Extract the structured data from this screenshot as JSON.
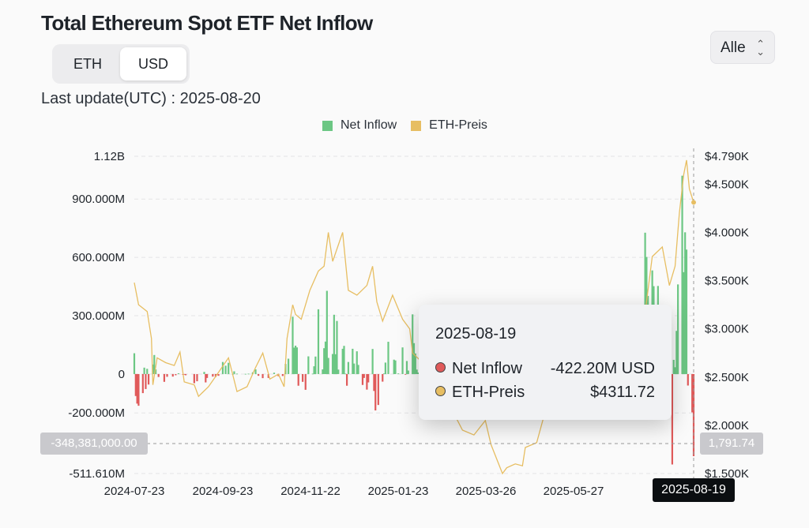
{
  "header": {
    "title": "Total Ethereum Spot ETF Net Inflow",
    "last_update": "Last update(UTC) : 2025-08-20",
    "unit_toggle": [
      "ETH",
      "USD"
    ],
    "unit_selected": "USD",
    "range_select": "Alle",
    "range_chevron": "⌃⌄"
  },
  "legend": [
    {
      "label": "Net Inflow",
      "color": "#6cc784"
    },
    {
      "label": "ETH-Preis",
      "color": "#e7be62"
    }
  ],
  "tooltip": {
    "date": "2025-08-19",
    "rows": [
      {
        "label": "Net Inflow",
        "value": "-422.20M USD",
        "dot": "#e05a5a"
      },
      {
        "label": "ETH-Preis",
        "value": "$4311.72",
        "dot": "#e7be62"
      }
    ]
  },
  "crosshair": {
    "left_value": "-348,381,000.00",
    "right_value": "1,791.74",
    "x_label": "2025-08-19"
  },
  "chart_data": {
    "type": "bar",
    "x_start": "2024-07-23",
    "x_end": "2025-08-19",
    "x_tick_labels": [
      "2024-07-23",
      "2024-09-23",
      "2024-11-22",
      "2025-01-23",
      "2025-03-26",
      "2025-05-27",
      "2025-08-19"
    ],
    "y_left_tick_labels": [
      "1.12B",
      "900.000M",
      "600.000M",
      "300.000M",
      "0",
      "-200.000M",
      "-511.610M"
    ],
    "y_right_tick_labels": [
      "$4.790K",
      "$4.500K",
      "$4.000K",
      "$3.500K",
      "$3.000K",
      "$2.500K",
      "$2.000K",
      "$1.500K"
    ],
    "ylim_left": [
      -511610000,
      1120000000
    ],
    "ylim_right": [
      1500,
      4790
    ],
    "grid": true,
    "legend_position": "top-center",
    "colors": {
      "inflow_positive": "#6cc784",
      "inflow_negative": "#e05a5a",
      "price": "#e7be62"
    },
    "series": [
      {
        "name": "Net Inflow",
        "type": "bar",
        "unit": "USD",
        "points": [
          [
            "2024-07-23",
            107
          ],
          [
            "2024-07-24",
            -113
          ],
          [
            "2024-07-25",
            -152
          ],
          [
            "2024-07-26",
            -163
          ],
          [
            "2024-07-29",
            -98
          ],
          [
            "2024-07-30",
            33
          ],
          [
            "2024-07-31",
            -77
          ],
          [
            "2024-08-01",
            27
          ],
          [
            "2024-08-02",
            -54
          ],
          [
            "2024-08-05",
            49
          ],
          [
            "2024-08-06",
            98
          ],
          [
            "2024-08-07",
            24
          ],
          [
            "2024-08-09",
            -15
          ],
          [
            "2024-08-13",
            -40
          ],
          [
            "2024-08-15",
            -14
          ],
          [
            "2024-08-19",
            -13
          ],
          [
            "2024-08-21",
            -6
          ],
          [
            "2024-08-23",
            4
          ],
          [
            "2024-08-26",
            -3
          ],
          [
            "2024-08-27",
            -3
          ],
          [
            "2024-08-28",
            -6
          ],
          [
            "2024-09-03",
            -47
          ],
          [
            "2024-09-05",
            -37
          ],
          [
            "2024-09-10",
            11
          ],
          [
            "2024-09-11",
            -43
          ],
          [
            "2024-09-12",
            -20
          ],
          [
            "2024-09-16",
            -13
          ],
          [
            "2024-09-18",
            -15
          ],
          [
            "2024-09-20",
            -9
          ],
          [
            "2024-09-23",
            62
          ],
          [
            "2024-09-25",
            43
          ],
          [
            "2024-09-27",
            58
          ],
          [
            "2024-09-30",
            0
          ],
          [
            "2024-10-01",
            14
          ],
          [
            "2024-10-03",
            2
          ],
          [
            "2024-10-09",
            1
          ],
          [
            "2024-10-11",
            2
          ],
          [
            "2024-10-14",
            9
          ],
          [
            "2024-10-16",
            24
          ],
          [
            "2024-10-18",
            -9
          ],
          [
            "2024-10-21",
            -21
          ],
          [
            "2024-10-25",
            -20
          ],
          [
            "2024-10-29",
            7
          ],
          [
            "2024-11-01",
            -11
          ],
          [
            "2024-11-04",
            -10
          ],
          [
            "2024-11-06",
            52
          ],
          [
            "2024-11-08",
            79
          ],
          [
            "2024-11-11",
            295
          ],
          [
            "2024-11-12",
            136
          ],
          [
            "2024-11-13",
            146
          ],
          [
            "2024-11-14",
            137
          ],
          [
            "2024-11-15",
            -60
          ],
          [
            "2024-11-18",
            -40
          ],
          [
            "2024-11-20",
            -81
          ],
          [
            "2024-11-22",
            91
          ],
          [
            "2024-11-25",
            2
          ],
          [
            "2024-11-26",
            40
          ],
          [
            "2024-11-27",
            90
          ],
          [
            "2024-11-29",
            333
          ],
          [
            "2024-12-02",
            24
          ],
          [
            "2024-12-03",
            133
          ],
          [
            "2024-12-04",
            167
          ],
          [
            "2024-12-05",
            428
          ],
          [
            "2024-12-06",
            83
          ],
          [
            "2024-12-09",
            103
          ],
          [
            "2024-12-10",
            305
          ],
          [
            "2024-12-11",
            102
          ],
          [
            "2024-12-12",
            273
          ],
          [
            "2024-12-13",
            23
          ],
          [
            "2024-12-16",
            130
          ],
          [
            "2024-12-17",
            145
          ],
          [
            "2024-12-18",
            2
          ],
          [
            "2024-12-19",
            -60
          ],
          [
            "2024-12-20",
            62
          ],
          [
            "2024-12-23",
            130
          ],
          [
            "2024-12-24",
            54
          ],
          [
            "2024-12-26",
            117
          ],
          [
            "2024-12-27",
            47
          ],
          [
            "2024-12-30",
            -56
          ],
          [
            "2024-12-31",
            -20
          ],
          [
            "2025-01-02",
            -80
          ],
          [
            "2025-01-03",
            -43
          ],
          [
            "2025-01-06",
            129
          ],
          [
            "2025-01-07",
            -87
          ],
          [
            "2025-01-08",
            -187
          ],
          [
            "2025-01-10",
            -159
          ],
          [
            "2025-01-13",
            -39
          ],
          [
            "2025-01-14",
            3
          ],
          [
            "2025-01-15",
            59
          ],
          [
            "2025-01-17",
            166
          ],
          [
            "2025-01-21",
            74
          ],
          [
            "2025-01-22",
            70
          ],
          [
            "2025-01-24",
            3
          ],
          [
            "2025-01-27",
            137
          ],
          [
            "2025-01-29",
            -2
          ],
          [
            "2025-01-30",
            67
          ],
          [
            "2025-01-31",
            18
          ],
          [
            "2025-02-03",
            307
          ],
          [
            "2025-02-04",
            159
          ],
          [
            "2025-02-05",
            106
          ],
          [
            "2025-02-06",
            23
          ],
          [
            "2025-02-07",
            8
          ],
          [
            "2025-02-10",
            4
          ]
        ]
      },
      {
        "name": "ETH-Preis",
        "type": "line",
        "unit": "USD",
        "points": [
          [
            "2024-07-23",
            3480
          ],
          [
            "2024-07-26",
            3250
          ],
          [
            "2024-08-01",
            3180
          ],
          [
            "2024-08-04",
            2900
          ],
          [
            "2024-08-05",
            2420
          ],
          [
            "2024-08-08",
            2700
          ],
          [
            "2024-08-14",
            2650
          ],
          [
            "2024-08-20",
            2620
          ],
          [
            "2024-08-24",
            2760
          ],
          [
            "2024-08-27",
            2450
          ],
          [
            "2024-09-03",
            2420
          ],
          [
            "2024-09-06",
            2300
          ],
          [
            "2024-09-13",
            2400
          ],
          [
            "2024-09-20",
            2550
          ],
          [
            "2024-09-27",
            2700
          ],
          [
            "2024-10-03",
            2350
          ],
          [
            "2024-10-10",
            2400
          ],
          [
            "2024-10-16",
            2600
          ],
          [
            "2024-10-21",
            2750
          ],
          [
            "2024-10-26",
            2480
          ],
          [
            "2024-11-01",
            2530
          ],
          [
            "2024-11-05",
            2400
          ],
          [
            "2024-11-07",
            2900
          ],
          [
            "2024-11-11",
            3250
          ],
          [
            "2024-11-13",
            3150
          ],
          [
            "2024-11-17",
            3100
          ],
          [
            "2024-11-23",
            3400
          ],
          [
            "2024-11-29",
            3600
          ],
          [
            "2024-12-03",
            3650
          ],
          [
            "2024-12-06",
            4000
          ],
          [
            "2024-12-09",
            3700
          ],
          [
            "2024-12-16",
            4000
          ],
          [
            "2024-12-20",
            3400
          ],
          [
            "2024-12-26",
            3350
          ],
          [
            "2025-01-02",
            3450
          ],
          [
            "2025-01-06",
            3650
          ],
          [
            "2025-01-09",
            3280
          ],
          [
            "2025-01-13",
            3080
          ],
          [
            "2025-01-20",
            3350
          ],
          [
            "2025-01-27",
            3100
          ],
          [
            "2025-02-01",
            3000
          ],
          [
            "2025-02-03",
            2750
          ],
          [
            "2025-02-10",
            2650
          ],
          [
            "2025-02-20",
            2700
          ],
          [
            "2025-02-25",
            2400
          ],
          [
            "2025-03-03",
            2150
          ],
          [
            "2025-03-10",
            1950
          ],
          [
            "2025-03-18",
            1900
          ],
          [
            "2025-03-26",
            2050
          ],
          [
            "2025-03-30",
            1800
          ],
          [
            "2025-04-07",
            1500
          ],
          [
            "2025-04-10",
            1560
          ],
          [
            "2025-04-16",
            1600
          ],
          [
            "2025-04-21",
            1580
          ],
          [
            "2025-04-23",
            1770
          ],
          [
            "2025-05-01",
            1820
          ],
          [
            "2025-05-08",
            2200
          ],
          [
            "2025-05-13",
            2650
          ],
          [
            "2025-05-20",
            2550
          ],
          [
            "2025-05-28",
            2650
          ],
          [
            "2025-06-05",
            2500
          ],
          [
            "2025-06-11",
            2800
          ],
          [
            "2025-06-17",
            2550
          ],
          [
            "2025-06-22",
            2250
          ],
          [
            "2025-07-01",
            2450
          ],
          [
            "2025-07-09",
            2650
          ],
          [
            "2025-07-15",
            3050
          ],
          [
            "2025-07-21",
            3750
          ],
          [
            "2025-07-28",
            3850
          ],
          [
            "2025-08-02",
            3450
          ],
          [
            "2025-08-06",
            3650
          ],
          [
            "2025-08-09",
            4200
          ],
          [
            "2025-08-12",
            4600
          ],
          [
            "2025-08-14",
            4750
          ],
          [
            "2025-08-16",
            4450
          ],
          [
            "2025-08-19",
            4311.72
          ]
        ]
      }
    ],
    "late_inflow": [
      [
        "2025-07-14",
        100
      ],
      [
        "2025-07-15",
        260
      ],
      [
        "2025-07-16",
        727
      ],
      [
        "2025-07-17",
        602
      ],
      [
        "2025-07-18",
        402
      ],
      [
        "2025-07-21",
        533
      ],
      [
        "2025-07-22",
        452
      ],
      [
        "2025-07-23",
        332
      ],
      [
        "2025-07-24",
        231
      ],
      [
        "2025-07-25",
        453
      ],
      [
        "2025-07-28",
        65
      ],
      [
        "2025-07-29",
        219
      ],
      [
        "2025-07-30",
        5
      ],
      [
        "2025-07-31",
        17
      ],
      [
        "2025-08-01",
        -152
      ],
      [
        "2025-08-04",
        -465
      ],
      [
        "2025-08-05",
        73
      ],
      [
        "2025-08-06",
        35
      ],
      [
        "2025-08-07",
        222
      ],
      [
        "2025-08-08",
        461
      ],
      [
        "2025-08-11",
        1020
      ],
      [
        "2025-08-12",
        524
      ],
      [
        "2025-08-13",
        729
      ],
      [
        "2025-08-14",
        640
      ],
      [
        "2025-08-15",
        -59
      ],
      [
        "2025-08-18",
        -197
      ],
      [
        "2025-08-19",
        -422.2
      ]
    ],
    "inflow_scale": "millions"
  }
}
